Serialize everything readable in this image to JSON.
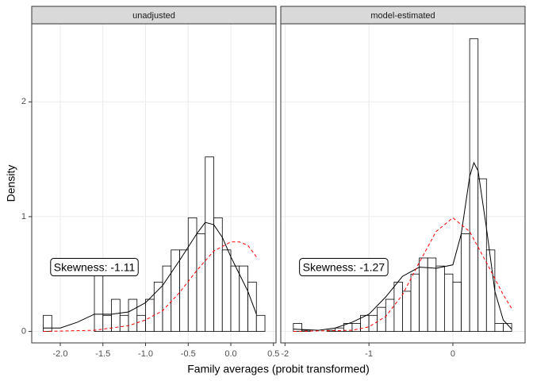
{
  "chart_data": {
    "type": "histogram",
    "x_label": "Family averages (probit transformed)",
    "y_label": "Density",
    "ylim": [
      -0.1,
      2.68
    ],
    "yticks": [
      0,
      1,
      2
    ],
    "grid": true,
    "panels": [
      {
        "strip": "unadjusted",
        "xlim": [
          -2.335,
          0.53
        ],
        "xticks": [
          {
            "value": -2.0,
            "label": "-2.0"
          },
          -1.5,
          {
            "value": -1.0,
            "label": "-1.0"
          },
          -0.5,
          {
            "value": 0.0,
            "label": "0.0"
          },
          0.5
        ],
        "bins": [
          -2.2,
          -2.1,
          -2.0,
          -1.9,
          -1.8,
          -1.7,
          -1.6,
          -1.5,
          -1.4,
          -1.3,
          -1.2,
          -1.1,
          -1.0,
          -0.9,
          -0.8,
          -0.7,
          -0.6,
          -0.5,
          -0.4,
          -0.3,
          -0.2,
          -0.1,
          0.0,
          0.1,
          0.2,
          0.3,
          0.4
        ],
        "values": [
          0.14,
          0,
          0,
          0,
          0,
          0,
          0.57,
          0.14,
          0.28,
          0.14,
          0.28,
          0.14,
          0.28,
          0.43,
          0.57,
          0.71,
          0.71,
          0.99,
          0.85,
          1.52,
          0.99,
          0.71,
          0.57,
          0.57,
          0.43,
          0.14
        ],
        "bar_color": "#000000",
        "lines": [
          {
            "color": "#000000",
            "linetype": "solid",
            "x": [
              -2.2,
              -2.0,
              -1.8,
              -1.6,
              -1.4,
              -1.2,
              -1.0,
              -0.8,
              -0.6,
              -0.4,
              -0.3,
              -0.2,
              -0.1,
              0.0,
              0.1,
              0.2,
              0.3
            ],
            "values": [
              0.03,
              0.03,
              0.08,
              0.15,
              0.15,
              0.17,
              0.25,
              0.4,
              0.62,
              0.85,
              0.95,
              0.93,
              0.82,
              0.65,
              0.5,
              0.35,
              0.15
            ]
          },
          {
            "color": "#ff0000",
            "linetype": "dashed",
            "x": [
              -2.2,
              -1.6,
              -1.2,
              -1.0,
              -0.8,
              -0.6,
              -0.4,
              -0.2,
              0.0,
              0.1,
              0.2,
              0.3
            ],
            "values": [
              0,
              0.01,
              0.05,
              0.1,
              0.18,
              0.34,
              0.53,
              0.7,
              0.78,
              0.78,
              0.75,
              0.65
            ]
          }
        ],
        "annotation": {
          "text": "Skewness: -1.11",
          "x": -1.6,
          "y": 0.56
        }
      },
      {
        "strip": "model-estimated",
        "xlim": [
          -2.05,
          0.86
        ],
        "xticks": [
          -2,
          -1,
          0
        ],
        "bins": [
          -1.9,
          -1.8,
          -1.7,
          -1.6,
          -1.5,
          -1.4,
          -1.3,
          -1.2,
          -1.1,
          -1.0,
          -0.9,
          -0.8,
          -0.7,
          -0.6,
          -0.5,
          -0.4,
          -0.3,
          -0.2,
          -0.1,
          0.0,
          0.1,
          0.2,
          0.3,
          0.4,
          0.5,
          0.6,
          0.7
        ],
        "values": [
          0.07,
          0.01,
          0,
          0,
          0.01,
          0.03,
          0.07,
          0.07,
          0.14,
          0.14,
          0.21,
          0.28,
          0.43,
          0.35,
          0.5,
          0.64,
          0.64,
          0.57,
          0.5,
          0.43,
          0.85,
          2.55,
          1.33,
          0.71,
          0.07,
          0.07
        ],
        "bar_color": "#000000",
        "lines": [
          {
            "color": "#000000",
            "linetype": "solid",
            "x": [
              -1.9,
              -1.6,
              -1.4,
              -1.2,
              -1.0,
              -0.8,
              -0.6,
              -0.4,
              -0.2,
              0.0,
              0.1,
              0.2,
              0.25,
              0.3,
              0.4,
              0.5,
              0.6,
              0.7
            ],
            "values": [
              0.02,
              0.01,
              0.03,
              0.08,
              0.15,
              0.3,
              0.48,
              0.56,
              0.55,
              0.58,
              0.85,
              1.35,
              1.47,
              1.4,
              0.9,
              0.35,
              0.1,
              0.02
            ]
          },
          {
            "color": "#ff0000",
            "linetype": "dashed",
            "x": [
              -1.9,
              -1.2,
              -1.0,
              -0.8,
              -0.6,
              -0.4,
              -0.2,
              0.0,
              0.2,
              0.4,
              0.6,
              0.7
            ],
            "values": [
              0,
              0.01,
              0.04,
              0.13,
              0.32,
              0.6,
              0.87,
              0.99,
              0.87,
              0.6,
              0.32,
              0.2
            ]
          }
        ],
        "annotation": {
          "text": "Skewness: -1.27",
          "x": -1.3,
          "y": 0.56
        }
      }
    ]
  }
}
